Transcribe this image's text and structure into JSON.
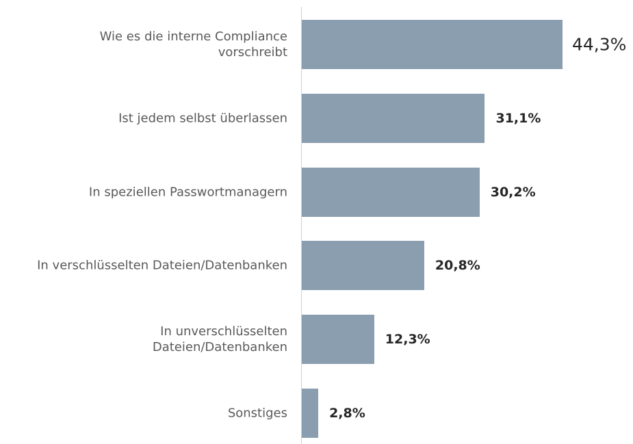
{
  "chart_data": {
    "type": "hbar",
    "categories": [
      "Wie es die interne Compliance\nvorschreibt",
      "Ist jedem selbst überlassen",
      "In speziellen Passwortmanagern",
      "In verschlüsselten Dateien/Datenbanken",
      "In unverschlüsselten\nDateien/Datenbanken",
      "Sonstiges"
    ],
    "values": [
      44.3,
      31.1,
      30.2,
      20.8,
      12.3,
      2.8
    ],
    "value_labels": [
      "44,3%",
      "31,1%",
      "30,2%",
      "20,8%",
      "12,3%",
      "2,8%"
    ],
    "color": "#8a9eb0"
  }
}
